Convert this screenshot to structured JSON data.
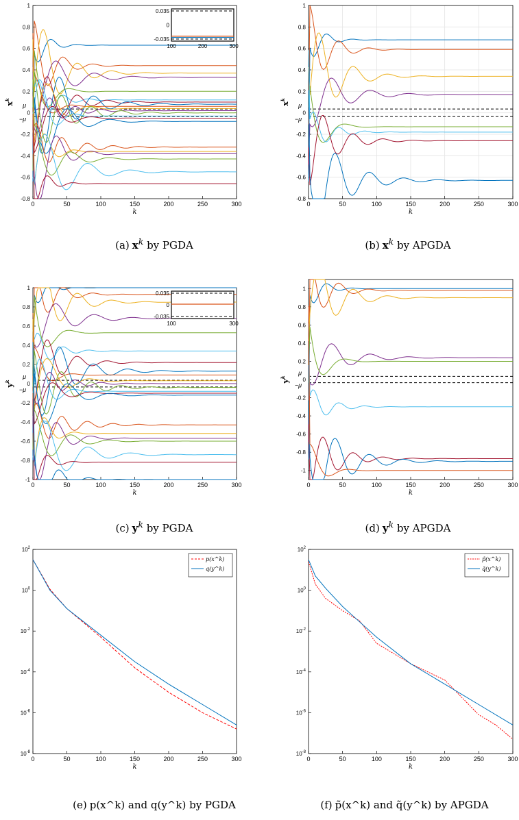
{
  "captions": {
    "a": {
      "pre": "(a)",
      "sym": "x",
      "sup": "k",
      "rest": " by PGDA"
    },
    "b": {
      "pre": "(b)",
      "sym": "x",
      "sup": "k",
      "rest": " by APGDA"
    },
    "c": {
      "pre": "(c)",
      "sym": "y",
      "sup": "k",
      "rest": " by PGDA"
    },
    "d": {
      "pre": "(d)",
      "sym": "y",
      "sup": "k",
      "rest": " by APGDA"
    },
    "e": {
      "pre": "(e)",
      "text": "p(x^k) and q(y^k) by PGDA"
    },
    "f": {
      "pre": "(f)",
      "text": "p̃(x^k) and q̃(y^k) by APGDA"
    }
  },
  "chart_data": [
    {
      "id": "a",
      "type": "line",
      "xlabel": "k",
      "ylabel": "x^k",
      "xlim": [
        0,
        300
      ],
      "ylim": [
        -0.8,
        1
      ],
      "xticks": [
        0,
        50,
        100,
        150,
        200,
        250,
        300
      ],
      "yticks": [
        "-0.8",
        "-0.6",
        "-0.4",
        "-0.2",
        "0",
        "0.2",
        "0.4",
        "0.6",
        "0.8",
        "1"
      ],
      "mu_labels": {
        "pos": "μ",
        "neg": "−μ",
        "value": 0.035
      },
      "grid": false,
      "finals": [
        0.63,
        0.44,
        0.37,
        0.33,
        0.2,
        0.12,
        0.1,
        0.08,
        0.06,
        0.04,
        0.02,
        0.0,
        -0.03,
        -0.05,
        -0.08,
        -0.32,
        -0.36,
        -0.38,
        -0.43,
        -0.55,
        -0.66
      ],
      "inset": {
        "xticks": [
          100,
          200,
          300
        ],
        "yticks": [
          "0.035",
          "0",
          "-0.035"
        ],
        "lines": [
          -0.028,
          -0.031
        ]
      }
    },
    {
      "id": "b",
      "type": "line",
      "xlabel": "k",
      "ylabel": "x^k",
      "xlim": [
        0,
        300
      ],
      "ylim": [
        -0.8,
        1
      ],
      "xticks": [
        0,
        50,
        100,
        150,
        200,
        250,
        300
      ],
      "yticks": [
        "-0.8",
        "-0.6",
        "-0.4",
        "-0.2",
        "0",
        "0.2",
        "0.4",
        "0.6",
        "0.8",
        "1"
      ],
      "mu_labels": {
        "pos": "μ",
        "neg": "−μ",
        "value": 0.035
      },
      "grid": true,
      "finals": [
        0.68,
        0.59,
        0.34,
        0.17,
        -0.13,
        -0.18,
        -0.26,
        -0.63
      ]
    },
    {
      "id": "c",
      "type": "line",
      "xlabel": "k",
      "ylabel": "y^k",
      "xlim": [
        0,
        300
      ],
      "ylim": [
        -1,
        1
      ],
      "xticks": [
        0,
        50,
        100,
        150,
        200,
        250,
        300
      ],
      "yticks": [
        "-1",
        "-0.8",
        "-0.6",
        "-0.4",
        "-0.2",
        "0",
        "0.2",
        "0.4",
        "0.6",
        "0.8",
        "1"
      ],
      "mu_labels": {
        "pos": "μ",
        "neg": "−μ",
        "value": 0.035
      },
      "grid": false,
      "finals": [
        1.0,
        0.93,
        0.85,
        0.68,
        0.53,
        0.34,
        0.22,
        0.13,
        0.09,
        0.03,
        0.0,
        -0.04,
        -0.08,
        -0.1,
        -0.12,
        -0.43,
        -0.52,
        -0.57,
        -0.6,
        -0.74,
        -0.82,
        -1.0
      ],
      "inset": {
        "xticks": [
          100,
          300
        ],
        "yticks": [
          "0.035",
          "0",
          "-0.035"
        ],
        "lines": [
          0.002
        ]
      }
    },
    {
      "id": "d",
      "type": "line",
      "xlabel": "k",
      "ylabel": "y^k",
      "xlim": [
        0,
        300
      ],
      "ylim": [
        -1.1,
        1.1
      ],
      "xticks": [
        0,
        50,
        100,
        150,
        200,
        250,
        300
      ],
      "yticks": [
        "-1",
        "-0.8",
        "-0.6",
        "-0.4",
        "-0.2",
        "0",
        "0.2",
        "0.4",
        "0.6",
        "0.8",
        "1"
      ],
      "mu_labels": {
        "pos": "μ",
        "neg": "−μ",
        "value": 0.035
      },
      "grid": false,
      "finals": [
        1.0,
        0.98,
        0.9,
        0.24,
        0.2,
        -0.3,
        -0.87,
        -0.9,
        -1.0
      ]
    },
    {
      "id": "e",
      "type": "line",
      "scale": "log",
      "xlabel": "k",
      "ylabel": "",
      "xlim": [
        0,
        300
      ],
      "ylim_exp": [
        -8,
        2
      ],
      "xticks": [
        0,
        50,
        100,
        150,
        200,
        250,
        300
      ],
      "yticks": [
        "10^-8",
        "10^-6",
        "10^-4",
        "10^-2",
        "10^0",
        "10^2"
      ],
      "series": [
        {
          "name": "p(x^k)",
          "style": "dashed",
          "color": "#ff0000",
          "x": [
            0,
            25,
            50,
            100,
            150,
            200,
            250,
            300
          ],
          "y_exp": [
            1.5,
            0.05,
            -0.9,
            -2.3,
            -3.8,
            -5.0,
            -6.0,
            -6.8
          ]
        },
        {
          "name": "q(y^k)",
          "style": "solid",
          "color": "#0072bd",
          "x": [
            0,
            25,
            50,
            100,
            150,
            200,
            250,
            300
          ],
          "y_exp": [
            1.5,
            0.0,
            -0.9,
            -2.2,
            -3.5,
            -4.6,
            -5.6,
            -6.6
          ]
        }
      ],
      "legend": "top-right"
    },
    {
      "id": "f",
      "type": "line",
      "scale": "log",
      "xlabel": "k",
      "ylabel": "",
      "xlim": [
        0,
        300
      ],
      "ylim_exp": [
        -8,
        2
      ],
      "xticks": [
        0,
        50,
        100,
        150,
        200,
        250,
        300
      ],
      "yticks": [
        "10^-8",
        "10^-6",
        "10^-4",
        "10^-2",
        "10^0",
        "10^2"
      ],
      "series": [
        {
          "name": "p̃(x^k)",
          "style": "dotted",
          "color": "#ff0000",
          "x": [
            0,
            10,
            25,
            50,
            75,
            100,
            150,
            200,
            250,
            275,
            300
          ],
          "y_exp": [
            1.4,
            0.3,
            -0.4,
            -1.0,
            -1.5,
            -2.6,
            -3.6,
            -4.4,
            -6.1,
            -6.6,
            -7.3
          ]
        },
        {
          "name": "q̃(y^k)",
          "style": "solid",
          "color": "#0072bd",
          "x": [
            0,
            10,
            25,
            50,
            100,
            150,
            200,
            250,
            300
          ],
          "y_exp": [
            1.5,
            0.7,
            0.1,
            -0.8,
            -2.3,
            -3.6,
            -4.6,
            -5.6,
            -6.6
          ]
        }
      ],
      "legend": "top-right"
    }
  ]
}
